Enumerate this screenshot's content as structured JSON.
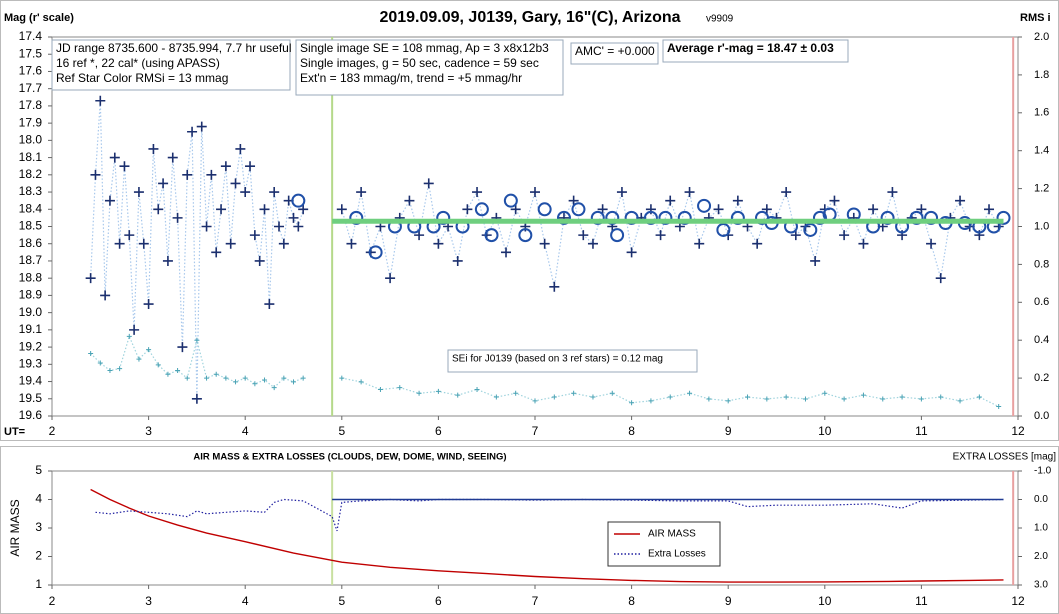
{
  "chart_data": [
    {
      "type": "scatter",
      "title": "2019.09.09, J0139, Gary, 16\"(C), Arizona",
      "version": "v9909",
      "ylabel": "Mag (r' scale)",
      "y2label": "RMS i",
      "xlabel": "UT=",
      "xlim": [
        2,
        12
      ],
      "xticks": [
        2,
        3,
        4,
        5,
        6,
        7,
        8,
        9,
        10,
        11,
        12
      ],
      "ylim": [
        19.6,
        17.4
      ],
      "yticks": [
        17.4,
        17.5,
        17.6,
        17.7,
        17.8,
        17.9,
        {
          "value": 18,
          "label": "18.0"
        },
        18.1,
        18.2,
        18.3,
        18.4,
        18.5,
        18.6,
        18.7,
        18.8,
        18.9,
        {
          "value": 19,
          "label": "19.0"
        },
        19.1,
        19.2,
        19.3,
        19.4,
        19.5,
        19.6
      ],
      "y2lim": [
        0,
        2
      ],
      "y2ticks": [
        {
          "value": 0,
          "label": "0.0"
        },
        0.2,
        0.4,
        0.6,
        0.8,
        {
          "value": 1,
          "label": "1.0"
        },
        1.2,
        1.4,
        1.6,
        1.8,
        {
          "value": 2,
          "label": "2.0"
        }
      ],
      "annotations": [
        {
          "lines": [
            "JD range 8735.600 - 8735.994, 7.7 hr useful",
            "16 ref *, 22 cal* (using APASS)",
            "Ref Star Color RMSi = 13 mmag"
          ]
        },
        {
          "lines": [
            "Single image SE = 108 mmag, Ap = 3 x8x12b3",
            "Single images, g = 50 sec, cadence = 59 sec",
            "Ext'n = 183 mmag/m, trend = +5 mmag/hr"
          ]
        },
        {
          "lines": [
            "AMC' = +0.000"
          ]
        },
        {
          "lines": [
            "Average r'-mag =  18.47 ± 0.03"
          ]
        },
        {
          "lines": [
            "SEi for J0139 (based on 3 ref stars) = 0.12 mag"
          ]
        }
      ],
      "vlines": [
        {
          "x": 4.9,
          "color": "#b5d98a"
        },
        {
          "x": 11.95,
          "color": "#e8a0a0"
        }
      ],
      "series": [
        {
          "marker": "plus",
          "color": "#1b2f6e",
          "line": "dotted",
          "line_color": "#a8c8ec",
          "x": [
            2.4,
            2.45,
            2.5,
            2.55,
            2.6,
            2.65,
            2.7,
            2.75,
            2.8,
            2.85,
            2.9,
            2.95,
            3.0,
            3.05,
            3.1,
            3.15,
            3.2,
            3.25,
            3.3,
            3.35,
            3.4,
            3.45,
            3.5,
            3.55,
            3.6,
            3.65,
            3.7,
            3.75,
            3.8,
            3.85,
            3.9,
            3.95,
            4.0,
            4.05,
            4.1,
            4.15,
            4.2,
            4.25,
            4.3,
            4.35,
            4.4,
            4.45,
            4.5,
            4.55,
            4.6,
            4.8,
            5.0,
            5.1,
            5.2,
            5.3,
            5.4,
            5.5,
            5.6,
            5.7,
            5.8,
            5.9,
            6.0,
            6.1,
            6.2,
            6.3,
            6.4,
            6.5,
            6.6,
            6.7,
            6.8,
            6.9,
            7.0,
            7.1,
            7.2,
            7.3,
            7.4,
            7.5,
            7.6,
            7.7,
            7.8,
            7.9,
            8.0,
            8.1,
            8.2,
            8.3,
            8.4,
            8.5,
            8.6,
            8.7,
            8.8,
            8.9,
            9.0,
            9.1,
            9.2,
            9.3,
            9.4,
            9.5,
            9.6,
            9.7,
            9.8,
            9.9,
            10.0,
            10.1,
            10.2,
            10.3,
            10.4,
            10.5,
            10.6,
            10.7,
            10.8,
            10.9,
            11.0,
            11.1,
            11.2,
            11.3,
            11.4,
            11.5,
            11.6,
            11.7,
            11.8
          ],
          "values": [
            18.8,
            18.2,
            17.77,
            18.9,
            18.35,
            18.1,
            18.6,
            18.15,
            18.55,
            19.1,
            18.3,
            18.6,
            18.95,
            18.05,
            18.4,
            18.25,
            18.7,
            18.1,
            18.45,
            19.2,
            18.2,
            17.95,
            19.5,
            17.92,
            18.5,
            18.2,
            18.65,
            18.4,
            18.15,
            18.6,
            18.25,
            18.05,
            18.3,
            18.15,
            18.55,
            18.7,
            18.4,
            18.95,
            18.3,
            18.5,
            18.6,
            18.35,
            18.45,
            18.5,
            18.4,
            null,
            18.4,
            18.6,
            18.3,
            18.65,
            18.5,
            18.8,
            18.45,
            18.35,
            18.55,
            18.25,
            18.6,
            18.5,
            18.7,
            18.4,
            18.3,
            18.55,
            18.45,
            18.65,
            18.4,
            18.5,
            18.3,
            18.6,
            18.85,
            18.45,
            18.35,
            18.55,
            18.6,
            18.4,
            18.5,
            18.3,
            18.65,
            18.45,
            18.4,
            18.55,
            18.35,
            18.5,
            18.3,
            18.6,
            18.45,
            18.4,
            18.55,
            18.35,
            18.5,
            18.6,
            18.4,
            18.45,
            18.3,
            18.55,
            18.5,
            18.7,
            18.4,
            18.35,
            18.55,
            18.45,
            18.6,
            18.4,
            18.5,
            18.3,
            18.55,
            18.45,
            18.4,
            18.6,
            18.8,
            18.45,
            18.35,
            18.5,
            18.55,
            18.4,
            18.5
          ]
        },
        {
          "marker": "circle",
          "color": "#2050a8",
          "x": [
            4.55,
            5.15,
            5.35,
            5.55,
            5.75,
            5.95,
            6.05,
            6.25,
            6.45,
            6.55,
            6.75,
            6.9,
            7.1,
            7.3,
            7.45,
            7.65,
            7.8,
            7.85,
            8.0,
            8.2,
            8.35,
            8.55,
            8.75,
            8.95,
            9.1,
            9.35,
            9.45,
            9.65,
            9.85,
            9.95,
            10.05,
            10.3,
            10.5,
            10.65,
            10.8,
            10.95,
            11.1,
            11.25,
            11.45,
            11.6,
            11.75,
            11.85
          ],
          "values": [
            18.35,
            18.45,
            18.65,
            18.5,
            18.5,
            18.5,
            18.45,
            18.5,
            18.4,
            18.55,
            18.35,
            18.55,
            18.4,
            18.45,
            18.4,
            18.45,
            18.45,
            18.55,
            18.45,
            18.45,
            18.45,
            18.45,
            18.38,
            18.52,
            18.45,
            18.45,
            18.48,
            18.5,
            18.52,
            18.45,
            18.43,
            18.43,
            18.5,
            18.45,
            18.5,
            18.45,
            18.45,
            18.48,
            18.48,
            18.5,
            18.5,
            18.45
          ]
        },
        {
          "marker": "small-plus",
          "color": "#4aa3b5",
          "axis": "y2",
          "line": "dotted",
          "line_color": "#9fd3dd",
          "x": [
            2.4,
            2.5,
            2.6,
            2.7,
            2.8,
            2.9,
            3.0,
            3.1,
            3.2,
            3.3,
            3.4,
            3.5,
            3.6,
            3.7,
            3.8,
            3.9,
            4.0,
            4.1,
            4.2,
            4.3,
            4.4,
            4.5,
            4.6,
            4.8,
            5.0,
            5.2,
            5.4,
            5.6,
            5.8,
            6.0,
            6.2,
            6.4,
            6.6,
            6.8,
            7.0,
            7.2,
            7.4,
            7.6,
            7.8,
            8.0,
            8.2,
            8.4,
            8.6,
            8.8,
            9.0,
            9.2,
            9.4,
            9.6,
            9.8,
            10.0,
            10.2,
            10.4,
            10.6,
            10.8,
            11.0,
            11.2,
            11.4,
            11.6,
            11.8
          ],
          "values": [
            0.33,
            0.28,
            0.24,
            0.25,
            0.42,
            0.3,
            0.35,
            0.27,
            0.22,
            0.24,
            0.2,
            0.4,
            0.2,
            0.22,
            0.2,
            0.18,
            0.2,
            0.17,
            0.19,
            0.15,
            0.2,
            0.18,
            0.2,
            null,
            0.2,
            0.18,
            0.14,
            0.15,
            0.12,
            0.13,
            0.11,
            0.14,
            0.1,
            0.12,
            0.08,
            0.1,
            0.12,
            0.1,
            0.12,
            0.07,
            0.08,
            0.1,
            0.12,
            0.09,
            0.08,
            0.1,
            0.09,
            0.1,
            0.09,
            0.12,
            0.09,
            0.11,
            0.09,
            0.1,
            0.09,
            0.1,
            0.08,
            0.1,
            0.05
          ]
        },
        {
          "marker": "none",
          "color": "#6fcf7f",
          "line": "solid",
          "x": [
            4.9,
            11.85
          ],
          "values": [
            18.47,
            18.47
          ]
        }
      ]
    },
    {
      "type": "line",
      "title": "AIR MASS & EXTRA LOSSES (CLOUDS, DEW, DOME, WIND, SEEING)",
      "ylabel": "AIR MASS",
      "y2label": "EXTRA LOSSES [mag]",
      "xlim": [
        2,
        12
      ],
      "xticks": [
        2,
        3,
        4,
        5,
        6,
        7,
        8,
        9,
        10,
        11,
        12
      ],
      "ylim": [
        1,
        5
      ],
      "yticks": [
        1,
        2,
        3,
        4,
        5
      ],
      "y2lim": [
        3,
        -1
      ],
      "y2ticks": [
        {
          "value": -1,
          "label": "-1.0"
        },
        {
          "value": 0,
          "label": "0.0"
        },
        {
          "value": 1,
          "label": "1.0"
        },
        {
          "value": 2,
          "label": "2.0"
        },
        {
          "value": 3,
          "label": "3.0"
        }
      ],
      "legend": "lower center",
      "vlines": [
        {
          "x": 4.9,
          "color": "#c8e0a0"
        },
        {
          "x": 11.95,
          "color": "#e8a0a0"
        }
      ],
      "series": [
        {
          "name": "AIR MASS",
          "color": "#c00000",
          "line": "solid",
          "x": [
            2.4,
            2.6,
            2.8,
            3.0,
            3.3,
            3.6,
            4.0,
            4.5,
            5.0,
            5.5,
            6.0,
            6.5,
            7.0,
            7.5,
            8.0,
            8.5,
            9.0,
            9.5,
            10,
            10.5,
            11,
            11.5,
            11.85
          ],
          "values": [
            4.35,
            4.0,
            3.7,
            3.42,
            3.1,
            2.82,
            2.52,
            2.12,
            1.8,
            1.62,
            1.5,
            1.4,
            1.3,
            1.22,
            1.16,
            1.12,
            1.1,
            1.1,
            1.11,
            1.12,
            1.14,
            1.16,
            1.18
          ]
        },
        {
          "name": "Extra Losses",
          "color": "#1f1fa0",
          "line": "dotted",
          "axis": "y2",
          "x": [
            2.45,
            2.6,
            2.8,
            3.0,
            3.2,
            3.4,
            3.5,
            3.6,
            3.8,
            4.0,
            4.2,
            4.3,
            4.4,
            4.6,
            4.9,
            4.95,
            5.0,
            5.2,
            5.5,
            5.8,
            6.0,
            6.5,
            7.0,
            7.5,
            8.0,
            8.5,
            9.0,
            9.2,
            9.5,
            10,
            10.5,
            10.8,
            11,
            11.5,
            11.85
          ],
          "values": [
            0.45,
            0.5,
            0.4,
            0.45,
            0.5,
            0.6,
            0.4,
            0.5,
            0.45,
            0.4,
            0.45,
            0.1,
            0.0,
            0.05,
            0.6,
            1.1,
            0.1,
            0.05,
            0.0,
            0.05,
            0.0,
            0.0,
            0.02,
            0.0,
            0.02,
            0.05,
            0.05,
            0.25,
            0.2,
            0.2,
            0.15,
            0.3,
            0.05,
            0.02,
            0.0
          ]
        },
        {
          "color": "#1f3a93",
          "line": "solid",
          "axis": "y2",
          "x": [
            4.9,
            11.85
          ],
          "values": [
            0,
            0
          ]
        }
      ]
    }
  ]
}
